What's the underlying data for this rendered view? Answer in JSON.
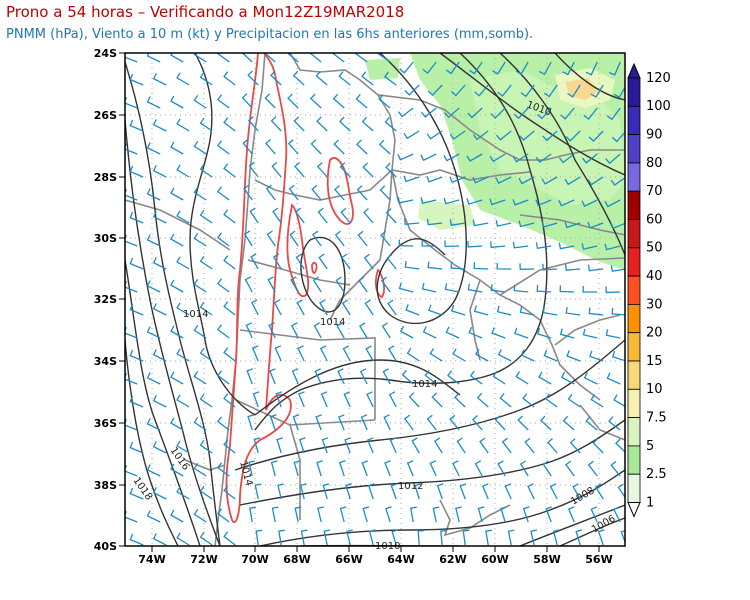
{
  "title": "Prono a 54 horas – Verificando a Mon12Z19MAR2018",
  "subtitle": "PNMM (hPa), Viento a 10 m (kt) y Precipitacion en las 6hs anteriores (mm,somb).",
  "map": {
    "lat_labels": [
      "24S",
      "26S",
      "28S",
      "30S",
      "32S",
      "34S",
      "36S",
      "38S",
      "40S"
    ],
    "lon_labels": [
      "74W",
      "72W",
      "70W",
      "68W",
      "66W",
      "64W",
      "62W",
      "60W",
      "58W",
      "56W"
    ],
    "grid_style": "dotted",
    "isobar_labels": [
      "1010",
      "1014",
      "1014",
      "1014",
      "1016",
      "1018",
      "1014",
      "1012",
      "1010",
      "1008",
      "1006"
    ],
    "colors": {
      "isobars": "#333333",
      "wind_barbs": "#1a8cc8",
      "terrain_contour": "#e04040",
      "borders": "#888888",
      "precip_light": "#b8f0a8",
      "precip_mid": "#e8f8c0",
      "precip_heavy": "#f8d890"
    }
  },
  "colorbar": {
    "levels": [
      "120",
      "100",
      "90",
      "80",
      "70",
      "60",
      "50",
      "40",
      "30",
      "20",
      "15",
      "10",
      "7.5",
      "5",
      "2.5",
      "1"
    ],
    "colors": [
      "#2a1a9a",
      "#3a2ab8",
      "#5040c8",
      "#7868e0",
      "#a00000",
      "#c81818",
      "#e82020",
      "#ff5020",
      "#ff9000",
      "#f8b838",
      "#f8d878",
      "#f8f0b0",
      "#d8f5c0",
      "#a8e898",
      "#e8f8e0",
      "#ffffff"
    ]
  }
}
